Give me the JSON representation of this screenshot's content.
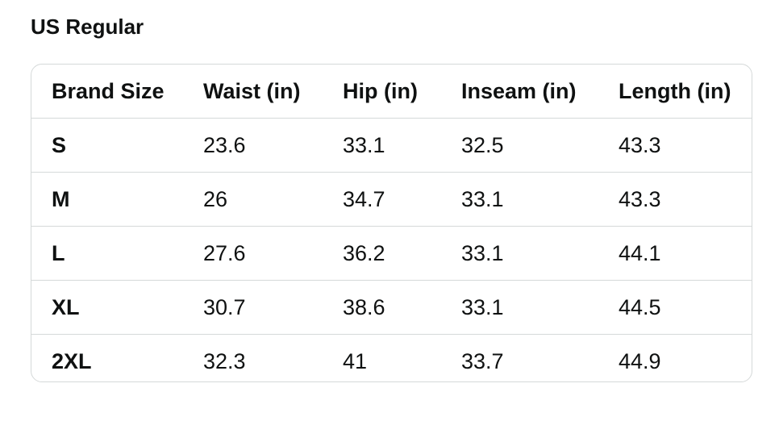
{
  "header": {
    "title": "US Regular"
  },
  "table": {
    "columns": [
      "Brand Size",
      "Waist (in)",
      "Hip (in)",
      "Inseam (in)",
      "Length (in)"
    ],
    "rows": [
      [
        "S",
        "23.6",
        "33.1",
        "32.5",
        "43.3"
      ],
      [
        "M",
        "26",
        "34.7",
        "33.1",
        "43.3"
      ],
      [
        "L",
        "27.6",
        "36.2",
        "33.1",
        "44.1"
      ],
      [
        "XL",
        "30.7",
        "38.6",
        "33.1",
        "44.5"
      ],
      [
        "2XL",
        "32.3",
        "41",
        "33.7",
        "44.9"
      ]
    ]
  }
}
